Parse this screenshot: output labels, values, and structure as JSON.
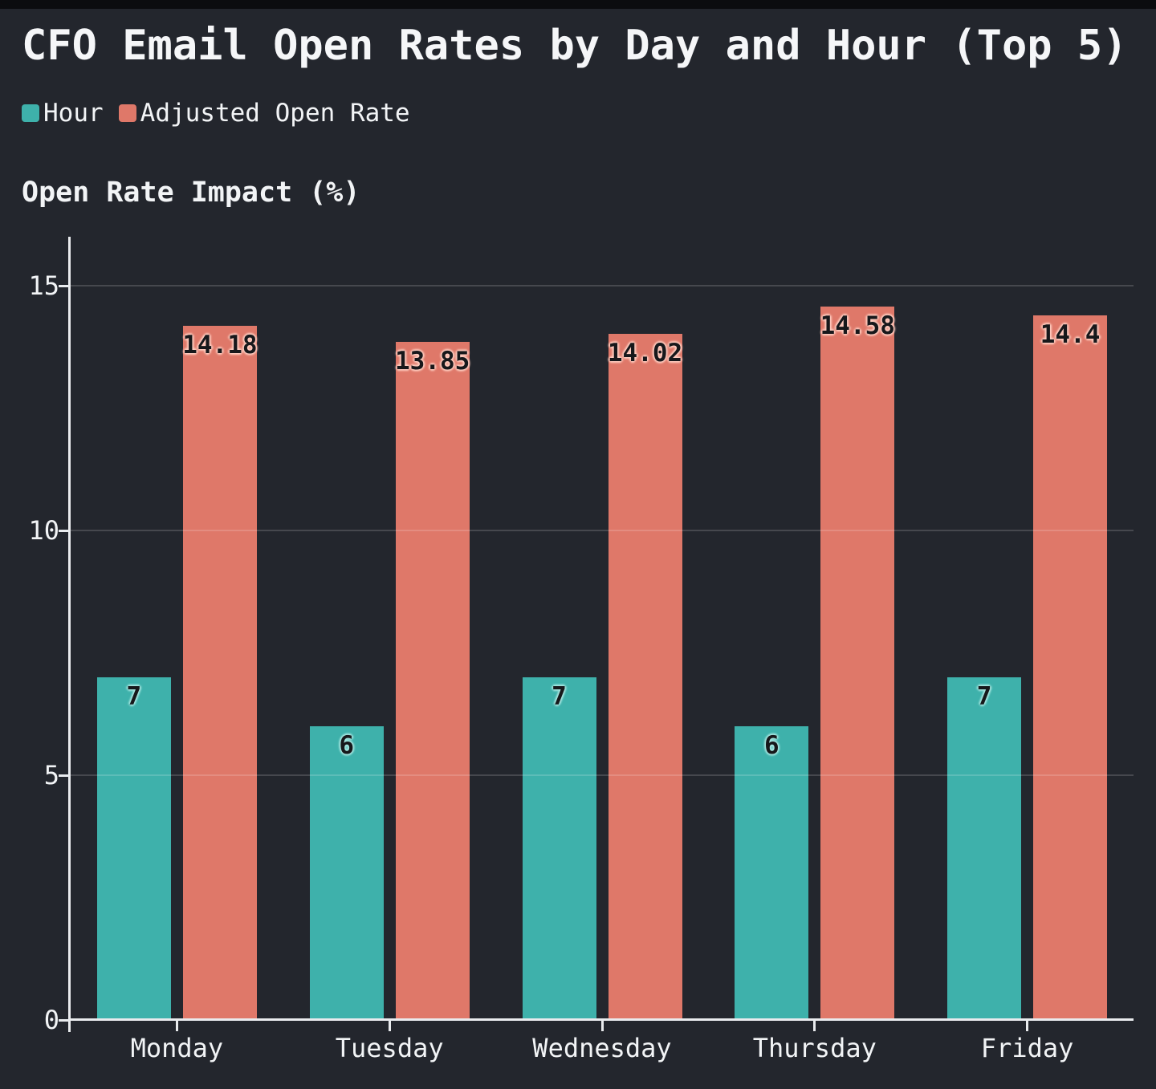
{
  "title": "CFO Email Open Rates by Day and Hour (Top 5)",
  "y_axis_title": "Open Rate Impact (%)",
  "legend": {
    "items": [
      "Hour",
      "Adjusted Open Rate"
    ]
  },
  "chart_data": {
    "type": "bar",
    "title": "CFO Email Open Rates by Day and Hour (Top 5)",
    "xlabel": "",
    "ylabel": "Open Rate Impact (%)",
    "categories": [
      "Monday",
      "Tuesday",
      "Wednesday",
      "Thursday",
      "Friday"
    ],
    "series": [
      {
        "name": "Hour",
        "color": "#3EB1AB",
        "label_halo": "#A7E7E1",
        "values": [
          7,
          6,
          7,
          6,
          7
        ]
      },
      {
        "name": "Adjusted Open Rate",
        "color": "#DF7869",
        "label_halo": "#FFCDC0",
        "values": [
          14.18,
          13.85,
          14.02,
          14.58,
          14.4
        ]
      }
    ],
    "y_ticks": [
      0,
      5,
      10,
      15
    ],
    "ylim": [
      0,
      16
    ],
    "grid": true,
    "legend_position": "top-left"
  },
  "colors": {
    "background": "#23262D",
    "top_strip": "#0B0C0F",
    "text": "#F2F4F6",
    "axis": "#E9EBEE",
    "gridline": "rgba(255,255,255,0.16)",
    "bar_label": "#17181B"
  }
}
